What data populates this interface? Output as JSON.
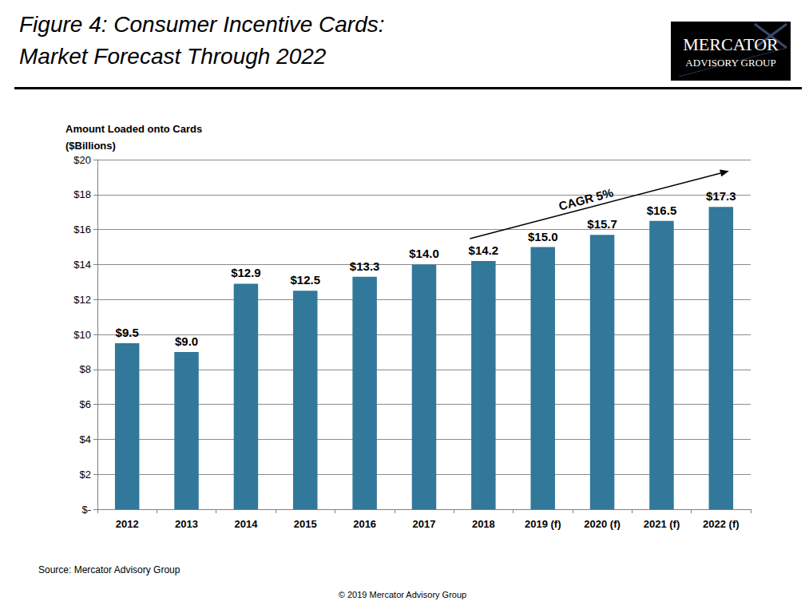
{
  "chart_data": {
    "type": "bar",
    "title": "Figure 4: Consumer Incentive Cards:",
    "subtitle": "Market Forecast Through 2022",
    "ylabel": "Amount Loaded onto Cards\n($Billions)",
    "categories": [
      "2012",
      "2013",
      "2014",
      "2015",
      "2016",
      "2017",
      "2018",
      "2019 (f)",
      "2020 (f)",
      "2021 (f)",
      "2022 (f)"
    ],
    "values": [
      9.5,
      9.0,
      12.9,
      12.5,
      13.3,
      14.0,
      14.2,
      15.0,
      15.7,
      16.5,
      17.3
    ],
    "value_labels": [
      "$9.5",
      "$9.0",
      "$12.9",
      "$12.5",
      "$13.3",
      "$14.0",
      "$14.2",
      "$15.0",
      "$15.7",
      "$16.5",
      "$17.3"
    ],
    "data_labels": true,
    "color": "#31789a",
    "ylim": [
      0,
      20
    ],
    "yticks": [
      {
        "value": 0,
        "label": "$-"
      },
      {
        "value": 2,
        "label": "$2"
      },
      {
        "value": 4,
        "label": "$4"
      },
      {
        "value": 6,
        "label": "$6"
      },
      {
        "value": 8,
        "label": "$8"
      },
      {
        "value": 10,
        "label": "$10"
      },
      {
        "value": 12,
        "label": "$12"
      },
      {
        "value": 14,
        "label": "$14"
      },
      {
        "value": 16,
        "label": "$16"
      },
      {
        "value": 18,
        "label": "$18"
      },
      {
        "value": 20,
        "label": "$20"
      }
    ],
    "grid": true,
    "annotations": [
      {
        "text": "CAGR 5%",
        "from": "2018",
        "to": "2022 (f)"
      }
    ],
    "logo": [
      "MERCATOR",
      "ADVISORY GROUP"
    ],
    "source": "Source: Mercator Advisory Group",
    "copyright": "© 2019 Mercator Advisory Group"
  }
}
